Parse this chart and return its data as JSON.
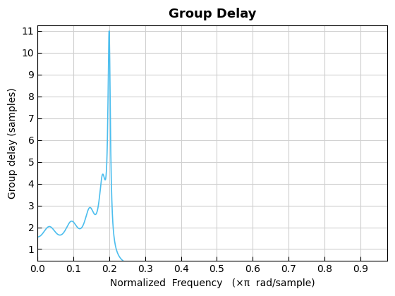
{
  "title": "Group Delay",
  "xlabel": "Normalized  Frequency   (×π  rad/sample)",
  "ylabel": "Group delay (samples)",
  "line_color": "#4DBEEE",
  "line_width": 1.2,
  "xlim": [
    0,
    0.975
  ],
  "ylim": [
    0.45,
    11.25
  ],
  "xticks": [
    0,
    0.1,
    0.2,
    0.3,
    0.4,
    0.5,
    0.6,
    0.7,
    0.8,
    0.9
  ],
  "yticks": [
    1,
    2,
    3,
    4,
    5,
    6,
    7,
    8,
    9,
    10,
    11
  ],
  "grid": true,
  "title_fontsize": 13,
  "label_fontsize": 10,
  "tick_fontsize": 10,
  "bg_color": "#ffffff",
  "grid_color": "#d0d0d0"
}
